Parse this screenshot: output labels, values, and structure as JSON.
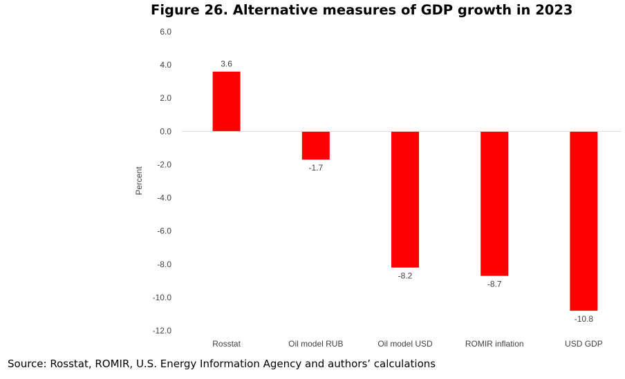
{
  "chart_data": {
    "type": "bar",
    "title": "Figure 26. Alternative measures of GDP growth in 2023",
    "ylabel": "Percent",
    "xlabel": "",
    "categories": [
      "Rosstat",
      "Oil model RUB",
      "Oil model USD",
      "ROMIR inflation",
      "USD GDP"
    ],
    "values": [
      3.6,
      -1.7,
      -8.2,
      -8.7,
      -10.8
    ],
    "value_labels": [
      "3.6",
      "-1.7",
      "-8.2",
      "-8.7",
      "-10.8"
    ],
    "ylim": [
      -12,
      6
    ],
    "yticks": [
      6,
      4,
      2,
      0,
      -2,
      -4,
      -6,
      -8,
      -10,
      -12
    ],
    "ytick_labels": [
      "6.0",
      "4.0",
      "2.0",
      "0.0",
      "-2.0",
      "-4.0",
      "-6.0",
      "-8.0",
      "-10.0",
      "-12.0"
    ],
    "grid": false,
    "bar_color": "#ff0000",
    "axis_color": "#d9d9d9"
  },
  "source": "Source: Rosstat, ROMIR, U.S. Energy Information Agency and authors’ calculations"
}
